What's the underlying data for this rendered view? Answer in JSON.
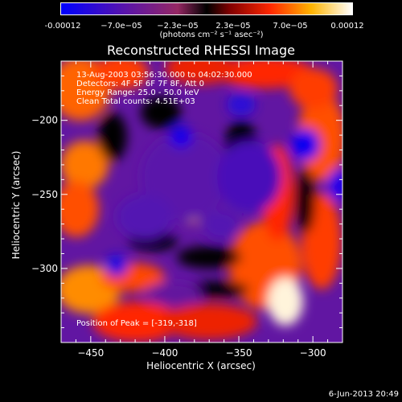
{
  "chart_data": {
    "type": "heatmap",
    "title": "Reconstructed RHESSI Image",
    "xlabel": "Heliocentric X (arcsec)",
    "ylabel": "Heliocentric Y (arcsec)",
    "xlim": [
      -470,
      -280
    ],
    "ylim": [
      -350,
      -160
    ],
    "x_ticks": [
      -450,
      -400,
      -350,
      -300
    ],
    "y_ticks": [
      -200,
      -250,
      -300
    ],
    "colorbar": {
      "min": -0.00012,
      "max": 0.00012,
      "tick_labels": [
        "-0.00012",
        "−7.0e−05",
        "−2.3e−05",
        "2.3e−05",
        "7.0e−05",
        "0.00012"
      ],
      "unit_label": "(photons cm⁻² s⁻¹ asec⁻²)"
    },
    "annotations": [
      "13-Aug-2003 03:56:30.000 to 04:02:30.000",
      "Detectors: 4F 5F 6F 7F 8F, Att 0",
      "Energy Range: 25.0 - 50.0 keV",
      "Clean     Total counts: 4.51E+03"
    ],
    "peak_label": "Position of Peak = [-319,-318]",
    "peak": [
      -319,
      -318
    ],
    "timestamp": "6-Jun-2013 20:49",
    "colors": {
      "background": "#000000",
      "text": "#ffffff"
    }
  }
}
